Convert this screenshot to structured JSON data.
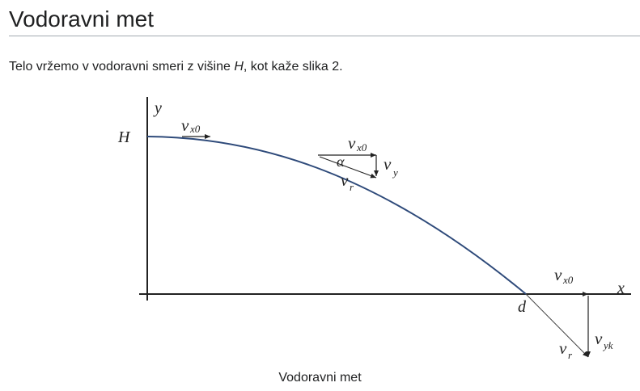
{
  "page": {
    "heading": "Vodoravni met",
    "intro_before": "Telo vržemo v vodoravni smeri z višine ",
    "intro_var": "H",
    "intro_after": ", kot kaže slika 2."
  },
  "figure": {
    "caption": "Vodoravni met",
    "labels": {
      "y_axis": "y",
      "x_axis": "x",
      "height": "H",
      "distance": "d",
      "alpha": "α",
      "v": "v",
      "sub_x0": "x0",
      "sub_y": "y",
      "sub_r": "r",
      "sub_yk": "yk"
    },
    "colors": {
      "trajectory": "#2e4a7a",
      "axes": "#222222",
      "vectors": "#222222",
      "guide": "#888888"
    }
  }
}
